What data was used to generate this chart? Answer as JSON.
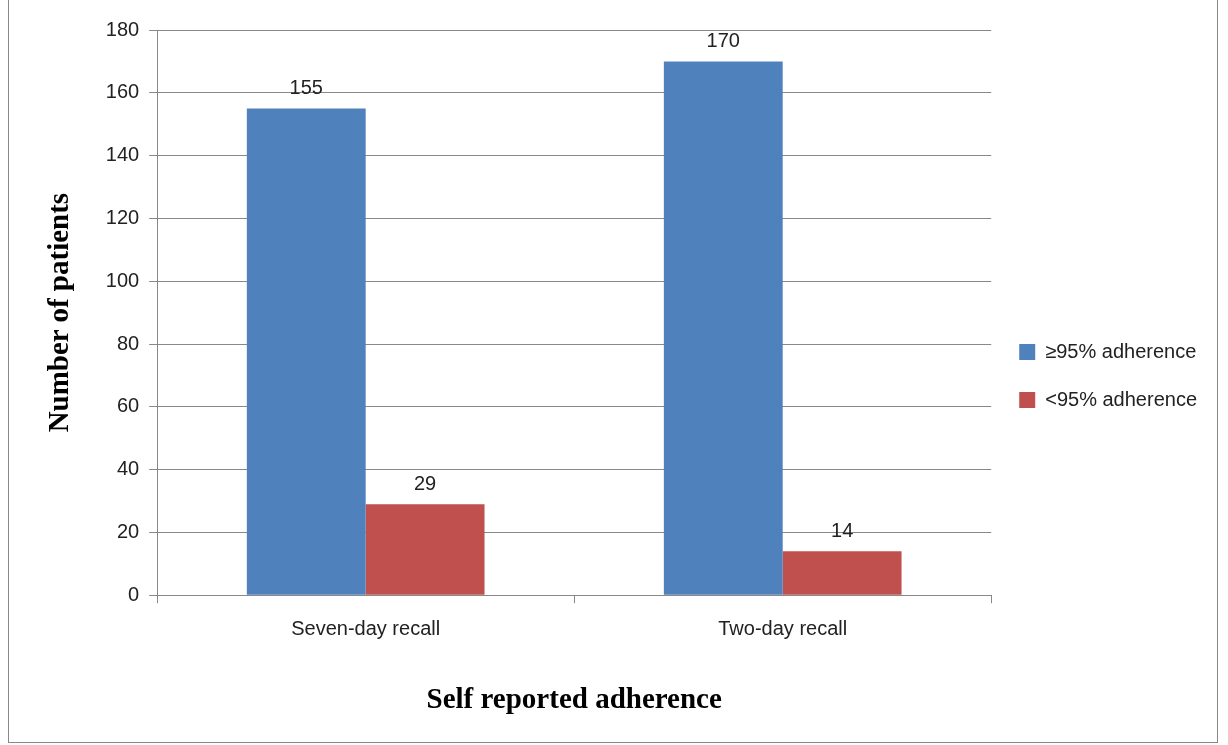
{
  "chart_data": {
    "type": "bar",
    "xlabel": "Self reported adherence",
    "ylabel": "Number of patients",
    "categories": [
      "Seven-day recall",
      "Two-day recall"
    ],
    "series": [
      {
        "name": "≥95% adherence",
        "color": "#4f81bd",
        "values": [
          155,
          170
        ]
      },
      {
        "name": "<95% adherence",
        "color": "#c0504d",
        "values": [
          29,
          14
        ]
      }
    ],
    "ylim": [
      0,
      180
    ],
    "yticks": [
      0,
      20,
      40,
      60,
      80,
      100,
      120,
      140,
      160,
      180
    ],
    "grid": "y",
    "legend": "right",
    "data_labels": true
  }
}
